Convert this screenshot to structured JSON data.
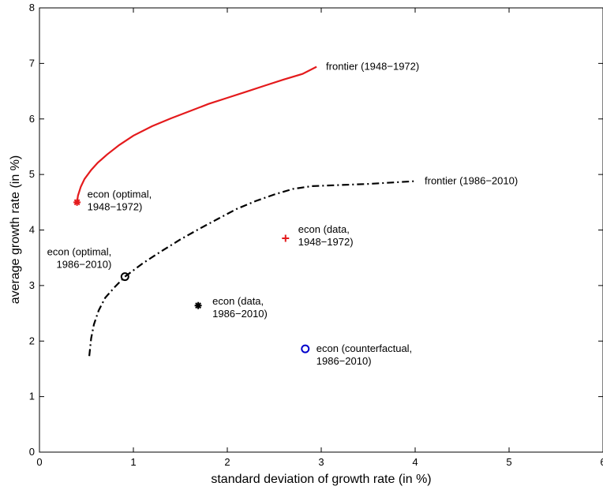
{
  "chart_data": {
    "type": "scatter",
    "xlabel": "standard deviation of growth rate (in %)",
    "ylabel": "average growth rate (in %)",
    "xlim": [
      0,
      6
    ],
    "ylim": [
      0,
      8
    ],
    "xticks": [
      0,
      1,
      2,
      3,
      4,
      5,
      6
    ],
    "yticks": [
      0,
      1,
      2,
      3,
      4,
      5,
      6,
      7,
      8
    ],
    "grid": false,
    "lines": [
      {
        "label": "frontier (1948−1972)",
        "color": "#e41a1c",
        "style": "solid",
        "points": [
          [
            0.4,
            4.5
          ],
          [
            0.41,
            4.62
          ],
          [
            0.44,
            4.78
          ],
          [
            0.48,
            4.92
          ],
          [
            0.55,
            5.08
          ],
          [
            0.62,
            5.21
          ],
          [
            0.72,
            5.36
          ],
          [
            0.85,
            5.53
          ],
          [
            1.0,
            5.7
          ],
          [
            1.2,
            5.87
          ],
          [
            1.4,
            6.01
          ],
          [
            1.6,
            6.14
          ],
          [
            1.8,
            6.27
          ],
          [
            2.0,
            6.38
          ],
          [
            2.2,
            6.49
          ],
          [
            2.4,
            6.6
          ],
          [
            2.6,
            6.71
          ],
          [
            2.8,
            6.81
          ],
          [
            2.95,
            6.94
          ]
        ]
      },
      {
        "label": "frontier (1986−2010)",
        "color": "#000000",
        "style": "dashdot",
        "points": [
          [
            0.53,
            1.73
          ],
          [
            0.55,
            2.05
          ],
          [
            0.58,
            2.3
          ],
          [
            0.63,
            2.55
          ],
          [
            0.7,
            2.78
          ],
          [
            0.8,
            2.97
          ],
          [
            0.91,
            3.16
          ],
          [
            1.1,
            3.4
          ],
          [
            1.3,
            3.62
          ],
          [
            1.5,
            3.83
          ],
          [
            1.7,
            4.02
          ],
          [
            1.9,
            4.2
          ],
          [
            2.1,
            4.38
          ],
          [
            2.3,
            4.52
          ],
          [
            2.5,
            4.64
          ],
          [
            2.7,
            4.74
          ],
          [
            2.9,
            4.79
          ],
          [
            3.2,
            4.81
          ],
          [
            3.5,
            4.83
          ],
          [
            3.8,
            4.86
          ],
          [
            4.0,
            4.88
          ]
        ]
      }
    ],
    "points": [
      {
        "label_line1": "econ (optimal,",
        "label_line2": "1948−1972)",
        "x": 0.4,
        "y": 4.5,
        "marker": "asterisk",
        "color": "#e41a1c"
      },
      {
        "label_line1": "econ (optimal,",
        "label_line2": "1986−2010)",
        "x": 0.91,
        "y": 3.16,
        "marker": "circle",
        "color": "#000000"
      },
      {
        "label_line1": "econ (data,",
        "label_line2": "1948−1972)",
        "x": 2.62,
        "y": 3.85,
        "marker": "plus",
        "color": "#e41a1c"
      },
      {
        "label_line1": "econ (data,",
        "label_line2": "1986−2010)",
        "x": 1.69,
        "y": 2.64,
        "marker": "asterisk",
        "color": "#000000"
      },
      {
        "label_line1": "econ (counterfactual,",
        "label_line2": "1986−2010)",
        "x": 2.83,
        "y": 1.86,
        "marker": "circle",
        "color": "#0000cc"
      }
    ]
  }
}
